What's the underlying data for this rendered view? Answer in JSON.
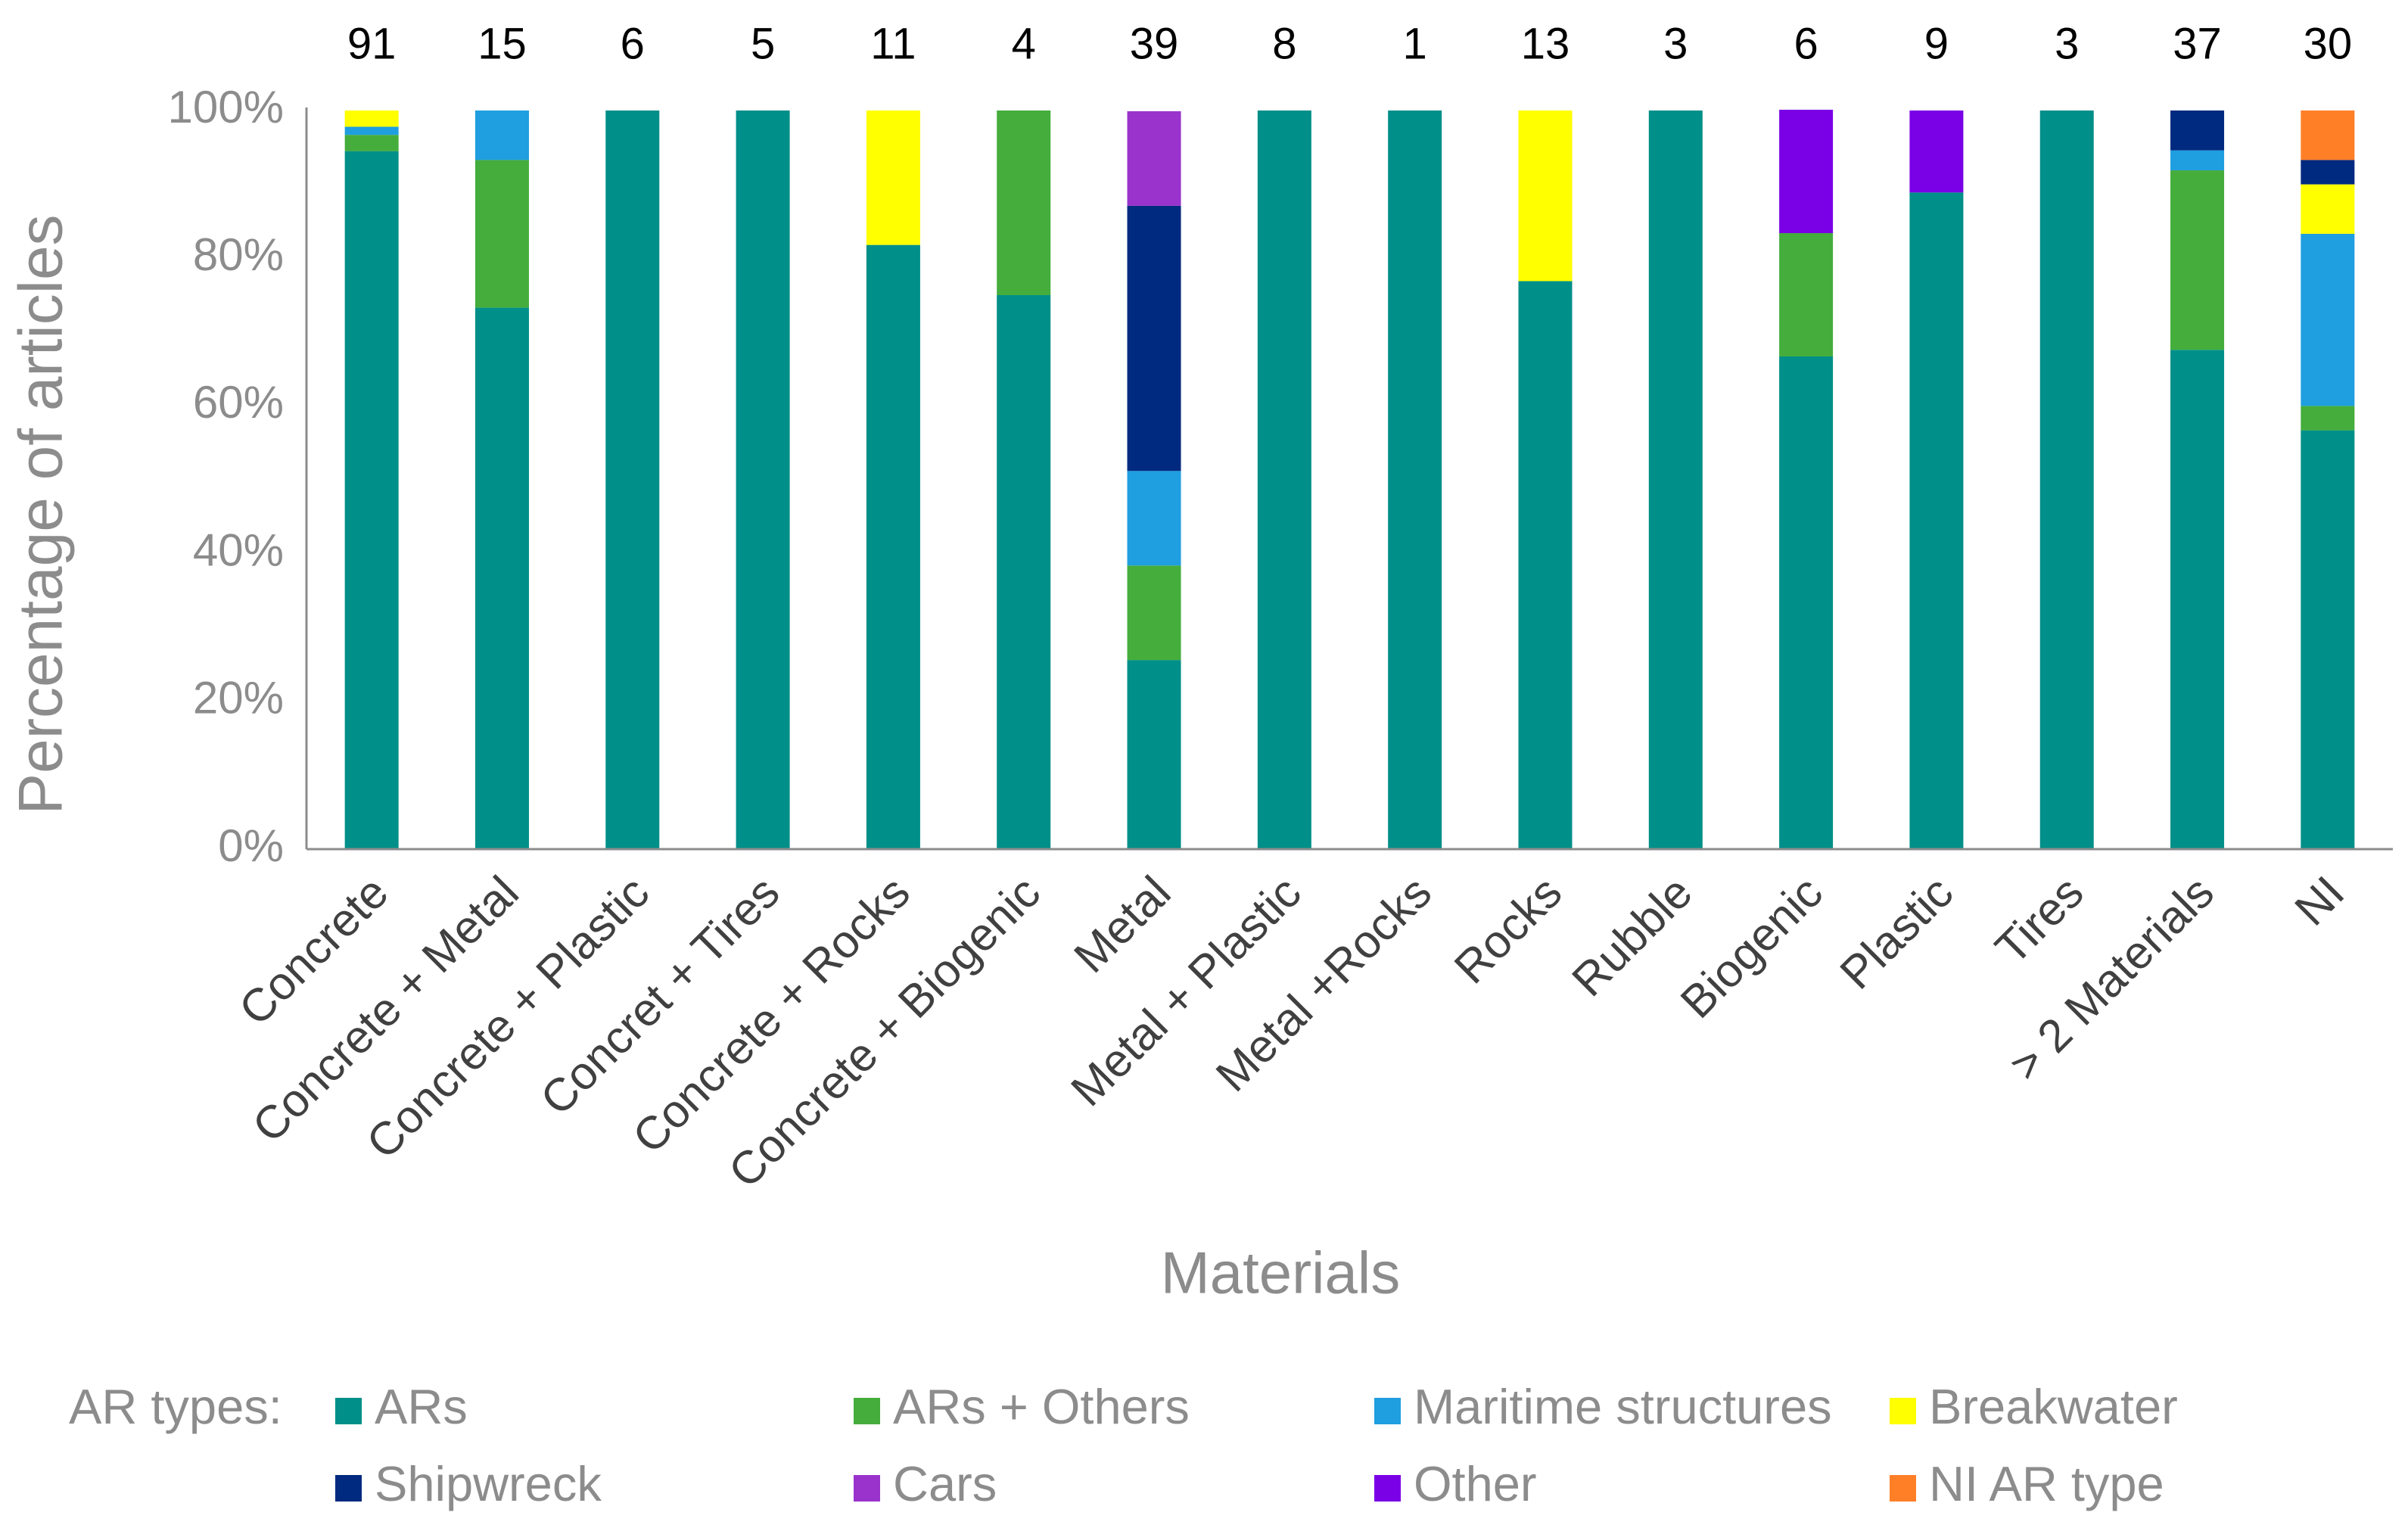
{
  "chart_data": {
    "type": "stacked_bar",
    "y_label": "Percentage of articles",
    "x_label": "Materials",
    "legend_title": "AR types:",
    "categories": [
      "Concrete",
      "Concrete + Metal",
      "Concrete + Plastic",
      "Concret + Tires",
      "Concrete + Rocks",
      "Concrete + Biogenic",
      "Metal",
      "Metal + Plastic",
      "Metal +Rocks",
      "Rocks",
      "Rubble",
      "Biogenic",
      "Plastic",
      "Tires",
      "> 2 Materials",
      "NI"
    ],
    "bar_labels": [
      91,
      15,
      6,
      5,
      11,
      4,
      39,
      8,
      1,
      13,
      3,
      6,
      9,
      3,
      37,
      30
    ],
    "series": [
      {
        "name": "ARs",
        "color": "#008f89",
        "values": [
          94.5,
          73.3,
          100,
          100,
          81.8,
          75,
          25.6,
          100,
          100,
          76.9,
          100,
          66.7,
          88.9,
          100,
          67.6,
          56.7
        ]
      },
      {
        "name": "ARs + Others",
        "color": "#44ad3c",
        "values": [
          2.2,
          20,
          0,
          0,
          0,
          25,
          12.8,
          0,
          0,
          0,
          0,
          16.7,
          0,
          0,
          24.3,
          3.3
        ]
      },
      {
        "name": "Maritime structures",
        "color": "#1f9ee0",
        "values": [
          1.1,
          6.7,
          0,
          0,
          0,
          0,
          12.8,
          0,
          0,
          0,
          0,
          0,
          0,
          0,
          2.7,
          23.3
        ]
      },
      {
        "name": "Breakwater",
        "color": "#ffff00",
        "values": [
          2.2,
          0,
          0,
          0,
          18.2,
          0,
          0,
          0,
          0,
          23.1,
          0,
          0,
          0,
          0,
          0,
          6.7
        ]
      },
      {
        "name": "Shipwreck",
        "color": "#002a7f",
        "values": [
          0,
          0,
          0,
          0,
          0,
          0,
          35.9,
          0,
          0,
          0,
          0,
          0,
          0,
          0,
          5.4,
          3.3
        ]
      },
      {
        "name": "Cars",
        "color": "#9933cc",
        "values": [
          0,
          0,
          0,
          0,
          0,
          0,
          12.8,
          0,
          0,
          0,
          0,
          0,
          0,
          0,
          0,
          0
        ]
      },
      {
        "name": "Other",
        "color": "#7a00e6",
        "values": [
          0,
          0,
          0,
          0,
          0,
          0,
          0,
          0,
          0,
          0,
          0,
          16.7,
          11.1,
          0,
          0,
          0
        ]
      },
      {
        "name": "NI AR type",
        "color": "#ff7f27",
        "values": [
          0,
          0,
          0,
          0,
          0,
          0,
          0,
          0,
          0,
          0,
          0,
          0,
          0,
          0,
          0,
          6.7
        ]
      }
    ],
    "ylim": [
      0,
      100
    ],
    "yticks": [
      {
        "value": 0,
        "label": "0%"
      },
      {
        "value": 20,
        "label": "20%"
      },
      {
        "value": 40,
        "label": "40%"
      },
      {
        "value": 60,
        "label": "60%"
      },
      {
        "value": 80,
        "label": "80%"
      },
      {
        "value": 100,
        "label": "100%"
      }
    ],
    "grid": false
  }
}
